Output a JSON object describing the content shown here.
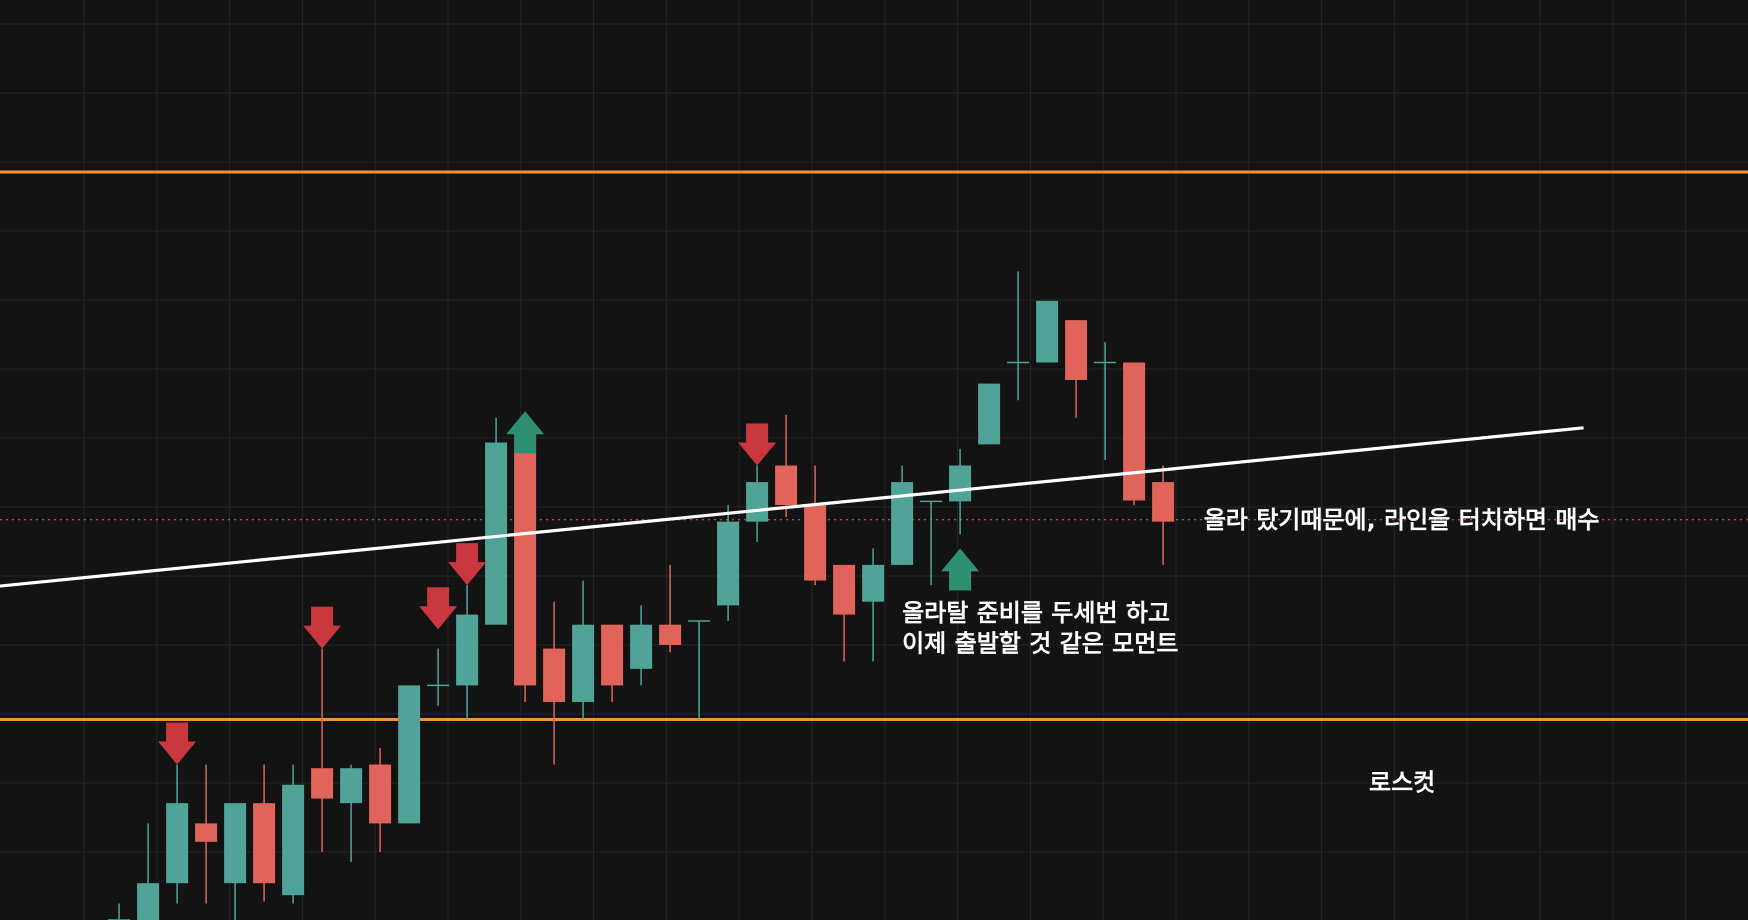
{
  "colors": {
    "background": "#131313",
    "grid": "#262626",
    "up": "#4fa397",
    "down": "#e0645a",
    "level_line": "#f0913a",
    "trend_line": "#ffffff",
    "price_line": "#e0645a",
    "arrow_up": "#2f8f72",
    "arrow_down": "#c9373f",
    "annotation_text": "#ffffff"
  },
  "chart_data": {
    "type": "candlestick",
    "grid": true,
    "y_range": [
      0,
      100
    ],
    "horizontal_levels": [
      {
        "name": "resistance",
        "value": 81.3,
        "color": "#f0913a"
      },
      {
        "name": "support",
        "value": 21.8,
        "color": "#f0913a"
      }
    ],
    "price_line": {
      "value": 43.5,
      "style": "dotted",
      "color": "#e0645a"
    },
    "trend_line": {
      "from": {
        "index": -5.6,
        "value": 34.6
      },
      "to": {
        "index": 54.4,
        "value": 53.5
      }
    },
    "candles": [
      {
        "i": -0.8,
        "o": 4.0,
        "h": 4.0,
        "l": 0.0,
        "c": 0.0
      },
      {
        "i": 3.9,
        "o": 0.0,
        "h": 1.8,
        "l": 0.0,
        "c": 0.0,
        "doji": true
      },
      {
        "i": 4.9,
        "o": 0.0,
        "h": 10.5,
        "l": 0.0,
        "c": 4.0
      },
      {
        "i": 5.9,
        "o": 4.0,
        "h": 16.9,
        "l": 1.8,
        "c": 12.7
      },
      {
        "i": 6.9,
        "o": 10.5,
        "h": 16.9,
        "l": 1.8,
        "c": 8.5
      },
      {
        "i": 7.9,
        "o": 4.0,
        "h": 12.7,
        "l": 0.0,
        "c": 12.7
      },
      {
        "i": 8.9,
        "o": 12.7,
        "h": 16.9,
        "l": 2.0,
        "c": 4.0
      },
      {
        "i": 9.9,
        "o": 2.7,
        "h": 16.9,
        "l": 1.8,
        "c": 14.7
      },
      {
        "i": 10.9,
        "o": 16.5,
        "h": 29.5,
        "l": 7.4,
        "c": 13.2
      },
      {
        "i": 11.9,
        "o": 12.7,
        "h": 16.9,
        "l": 6.3,
        "c": 16.5
      },
      {
        "i": 12.9,
        "o": 16.9,
        "h": 18.7,
        "l": 7.4,
        "c": 10.5
      },
      {
        "i": 13.9,
        "o": 10.5,
        "h": 25.1,
        "l": 10.5,
        "c": 25.5
      },
      {
        "i": 14.9,
        "o": 25.5,
        "h": 29.5,
        "l": 23.3,
        "c": 25.5,
        "doji": true
      },
      {
        "i": 15.9,
        "o": 25.5,
        "h": 36.4,
        "l": 21.8,
        "c": 33.2
      },
      {
        "i": 16.9,
        "o": 32.1,
        "h": 54.6,
        "l": 32.1,
        "c": 51.9
      },
      {
        "i": 17.9,
        "o": 51.7,
        "h": 52.8,
        "l": 23.7,
        "c": 25.5
      },
      {
        "i": 18.9,
        "o": 29.5,
        "h": 34.6,
        "l": 16.9,
        "c": 23.7
      },
      {
        "i": 19.9,
        "o": 23.7,
        "h": 36.9,
        "l": 21.8,
        "c": 32.1
      },
      {
        "i": 20.9,
        "o": 32.1,
        "h": 32.1,
        "l": 23.7,
        "c": 25.5
      },
      {
        "i": 21.9,
        "o": 27.3,
        "h": 34.2,
        "l": 25.5,
        "c": 32.1
      },
      {
        "i": 22.9,
        "o": 32.1,
        "h": 38.6,
        "l": 29.1,
        "c": 29.9
      },
      {
        "i": 23.9,
        "o": 32.5,
        "h": 32.5,
        "l": 21.8,
        "c": 32.5,
        "doji": true
      },
      {
        "i": 24.9,
        "o": 34.2,
        "h": 45.1,
        "l": 32.5,
        "c": 43.3
      },
      {
        "i": 25.9,
        "o": 43.3,
        "h": 49.4,
        "l": 41.1,
        "c": 47.6
      },
      {
        "i": 26.9,
        "o": 49.4,
        "h": 54.9,
        "l": 43.8,
        "c": 45.1
      },
      {
        "i": 27.9,
        "o": 45.1,
        "h": 49.4,
        "l": 36.4,
        "c": 36.9
      },
      {
        "i": 28.9,
        "o": 38.6,
        "h": 38.6,
        "l": 28.1,
        "c": 33.2
      },
      {
        "i": 29.9,
        "o": 34.6,
        "h": 40.4,
        "l": 28.1,
        "c": 38.6
      },
      {
        "i": 30.9,
        "o": 38.6,
        "h": 49.4,
        "l": 38.6,
        "c": 47.6
      },
      {
        "i": 31.9,
        "o": 45.5,
        "h": 45.5,
        "l": 36.4,
        "c": 45.5,
        "doji": true
      },
      {
        "i": 32.9,
        "o": 45.5,
        "h": 51.2,
        "l": 41.9,
        "c": 49.4
      },
      {
        "i": 33.9,
        "o": 51.7,
        "h": 58.3,
        "l": 51.7,
        "c": 58.3
      },
      {
        "i": 34.9,
        "o": 60.6,
        "h": 70.5,
        "l": 56.5,
        "c": 60.6,
        "doji": true
      },
      {
        "i": 35.9,
        "o": 60.6,
        "h": 67.3,
        "l": 60.6,
        "c": 67.3
      },
      {
        "i": 36.9,
        "o": 65.2,
        "h": 65.2,
        "l": 54.6,
        "c": 58.7
      },
      {
        "i": 37.9,
        "o": 60.6,
        "h": 62.8,
        "l": 50.0,
        "c": 60.6,
        "doji": true
      },
      {
        "i": 38.9,
        "o": 60.6,
        "h": 60.6,
        "l": 45.1,
        "c": 45.6
      },
      {
        "i": 39.9,
        "o": 47.6,
        "h": 49.4,
        "l": 38.6,
        "c": 43.3
      }
    ],
    "markers": [
      {
        "i": 5.9,
        "dir": "down",
        "value": 16.9
      },
      {
        "i": 10.9,
        "dir": "down",
        "value": 29.5
      },
      {
        "i": 14.9,
        "dir": "down",
        "value": 31.6
      },
      {
        "i": 15.9,
        "dir": "down",
        "value": 36.4
      },
      {
        "i": 17.9,
        "dir": "up",
        "value": 55.3
      },
      {
        "i": 25.9,
        "dir": "down",
        "value": 49.4
      },
      {
        "i": 32.9,
        "dir": "up",
        "value": 40.4
      }
    ],
    "annotations": [
      {
        "name": "buy-note",
        "text": "올라 탔기때문에, 라인을 터치하면 매수",
        "at": {
          "i": 41.3,
          "value": 42.6
        }
      },
      {
        "name": "momentum-note-1",
        "text": "올라탈 준비를 두세번 하고",
        "at": {
          "i": 30.9,
          "value": 32.5
        }
      },
      {
        "name": "momentum-note-2",
        "text": "이제 출발할 것 같은 모먼트",
        "at": {
          "i": 30.9,
          "value": 29.2
        }
      },
      {
        "name": "stop-loss-note",
        "text": "로스컷",
        "at": {
          "i": 47.0,
          "value": 14.1
        }
      }
    ]
  }
}
